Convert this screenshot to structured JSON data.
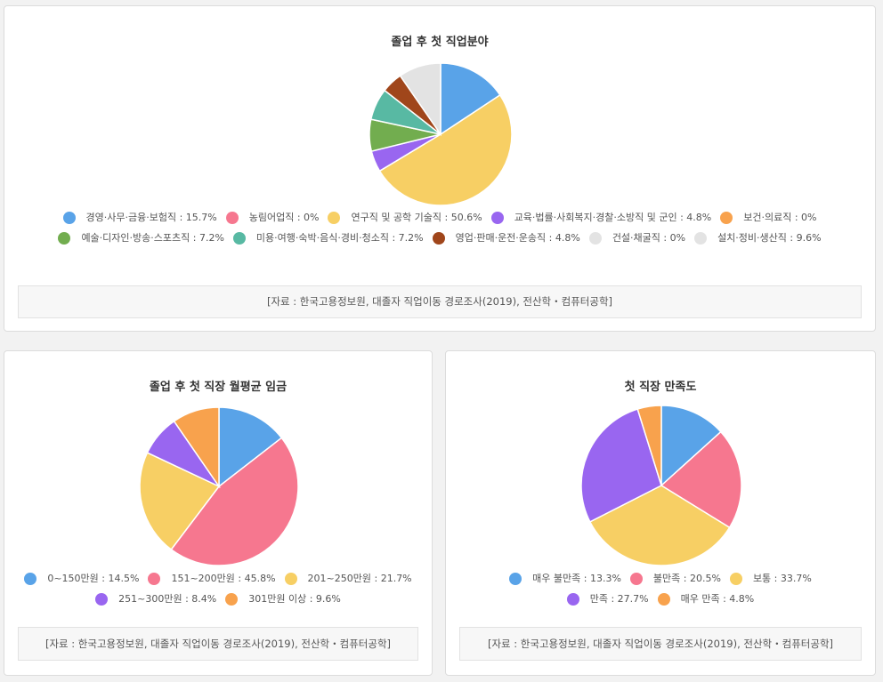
{
  "chart_data": [
    {
      "type": "pie",
      "title": "졸업 후 첫 직업분야",
      "labels": [
        "경영·사무·금융·보험직 : 15.7%",
        "농림어업직 : 0%",
        "연구직 및 공학 기술직 : 50.6%",
        "교육·법률·사회복지·경찰·소방직 및 군인 : 4.8%",
        "보건·의료직 : 0%",
        "예술·디자인·방송·스포츠직 : 7.2%",
        "미용·여행·숙박·음식·경비·청소직 : 7.2%",
        "영업·판매·운전·운송직 : 4.8%",
        "건설·채굴직 : 0%",
        "설치·정비·생산직 : 9.6%"
      ],
      "values": [
        15.7,
        0,
        50.6,
        4.8,
        0,
        7.2,
        7.2,
        4.8,
        0,
        9.6
      ],
      "colors": [
        "#59a3e8",
        "#f6778f",
        "#f7cf64",
        "#9966f0",
        "#f8a24d",
        "#72ad4f",
        "#58b9a3",
        "#a0461b",
        "#e3e3e3",
        "#e3e3e3"
      ],
      "legend": "bottom",
      "source": "[자료 : 한국고용정보원, 대졸자 직업이동 경로조사(2019), 전산학・컴퓨터공학]"
    },
    {
      "type": "pie",
      "title": "졸업 후 첫 직장 월평균 임금",
      "labels": [
        "0~150만원 : 14.5%",
        "151~200만원 : 45.8%",
        "201~250만원 : 21.7%",
        "251~300만원 : 8.4%",
        "301만원 이상 : 9.6%"
      ],
      "values": [
        14.5,
        45.8,
        21.7,
        8.4,
        9.6
      ],
      "colors": [
        "#59a3e8",
        "#f6778f",
        "#f7cf64",
        "#9966f0",
        "#f8a24d"
      ],
      "legend": "bottom",
      "source": "[자료 : 한국고용정보원, 대졸자 직업이동 경로조사(2019), 전산학・컴퓨터공학]"
    },
    {
      "type": "pie",
      "title": "첫 직장 만족도",
      "labels": [
        "매우 불만족 : 13.3%",
        "불만족 : 20.5%",
        "보통 : 33.7%",
        "만족 : 27.7%",
        "매우 만족 : 4.8%"
      ],
      "values": [
        13.3,
        20.5,
        33.7,
        27.7,
        4.8
      ],
      "colors": [
        "#59a3e8",
        "#f6778f",
        "#f7cf64",
        "#9966f0",
        "#f8a24d"
      ],
      "legend": "bottom",
      "source": "[자료 : 한국고용정보원, 대졸자 직업이동 경로조사(2019), 전산학・컴퓨터공학]"
    }
  ]
}
